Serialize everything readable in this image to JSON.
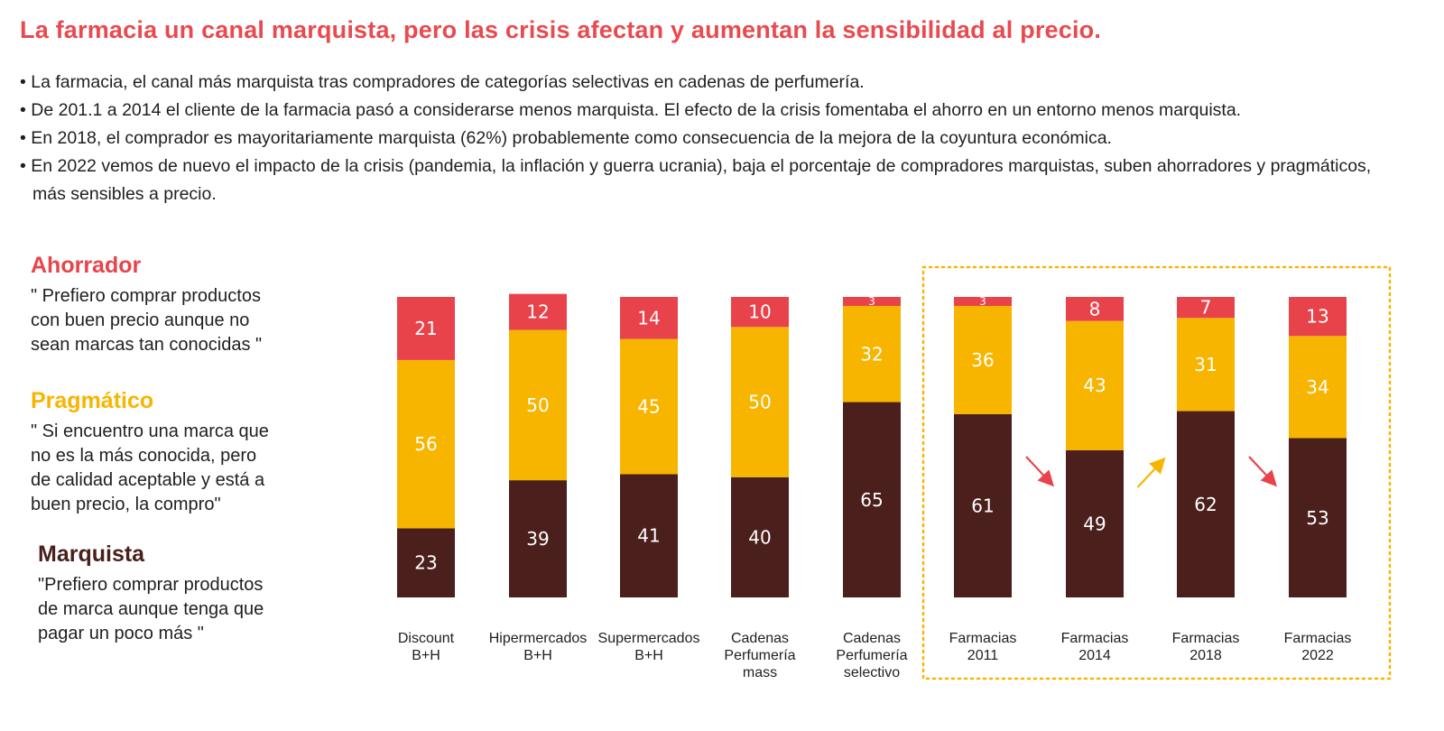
{
  "title": "La farmacia un canal marquista, pero las crisis afectan y aumentan la sensibilidad al precio.",
  "bullets": [
    "La farmacia, el canal más marquista tras compradores de categorías selectivas en cadenas de perfumería.",
    "De 201.1 a 2014 el cliente de la farmacia pasó a considerarse menos marquista. El efecto de la crisis fomentaba el ahorro en un entorno menos marquista.",
    "En 2018, el comprador es mayoritariamente marquista (62%) probablemente como consecuencia de la mejora de la coyuntura económica.",
    "En 2022 vemos de nuevo el impacto de la crisis (pandemia, la inflación y guerra ucrania), baja el porcentaje de compradores marquistas, suben ahorradores y pragmáticos, más sensibles a precio."
  ],
  "segments": {
    "ahorrador": {
      "title": "Ahorrador",
      "quote": "\" Prefiero comprar productos\n   con buen precio aunque no\n   sean marcas tan conocidas \"",
      "color": "#e8434b"
    },
    "pragmatico": {
      "title": "Pragmático",
      "quote": "\" Si encuentro una marca que\n   no es la más conocida, pero\n   de calidad aceptable y está a\n   buen precio, la compro\"",
      "color": "#f7b500"
    },
    "marquista": {
      "title": "Marquista",
      "quote": "\"Prefiero comprar productos\n  de marca aunque tenga que\n  pagar un poco más \"",
      "color": "#4a1f1c"
    }
  },
  "chart_data": {
    "type": "bar",
    "stacked": true,
    "categories": [
      [
        "Discount",
        "B+H"
      ],
      [
        "Hipermercados",
        "B+H"
      ],
      [
        "Supermercados",
        "B+H"
      ],
      [
        "Cadenas",
        "Perfumería",
        "mass"
      ],
      [
        "Cadenas",
        "Perfumería",
        "selectivo"
      ],
      [
        "Farmacias",
        "2011"
      ],
      [
        "Farmacias",
        "2014"
      ],
      [
        "Farmacias",
        "2018"
      ],
      [
        "Farmacias",
        "2022"
      ]
    ],
    "series": [
      {
        "name": "Marquista",
        "color": "#4a1f1c",
        "values": [
          23,
          39,
          41,
          40,
          65,
          61,
          49,
          62,
          53
        ]
      },
      {
        "name": "Pragmático",
        "color": "#f7b500",
        "values": [
          56,
          50,
          45,
          50,
          32,
          36,
          43,
          31,
          34
        ]
      },
      {
        "name": "Ahorrador",
        "color": "#e8434b",
        "values": [
          21,
          12,
          14,
          10,
          3,
          3,
          8,
          7,
          13
        ]
      }
    ],
    "highlight_group": "Farmacias 2011–2022",
    "trend_arrows": [
      {
        "between": [
          "Farmacias 2011",
          "Farmacias 2014"
        ],
        "direction": "down",
        "color": "#e8434b"
      },
      {
        "between": [
          "Farmacias 2014",
          "Farmacias 2018"
        ],
        "direction": "up",
        "color": "#f7b500"
      },
      {
        "between": [
          "Farmacias 2018",
          "Farmacias 2022"
        ],
        "direction": "down",
        "color": "#e8434b"
      }
    ]
  }
}
